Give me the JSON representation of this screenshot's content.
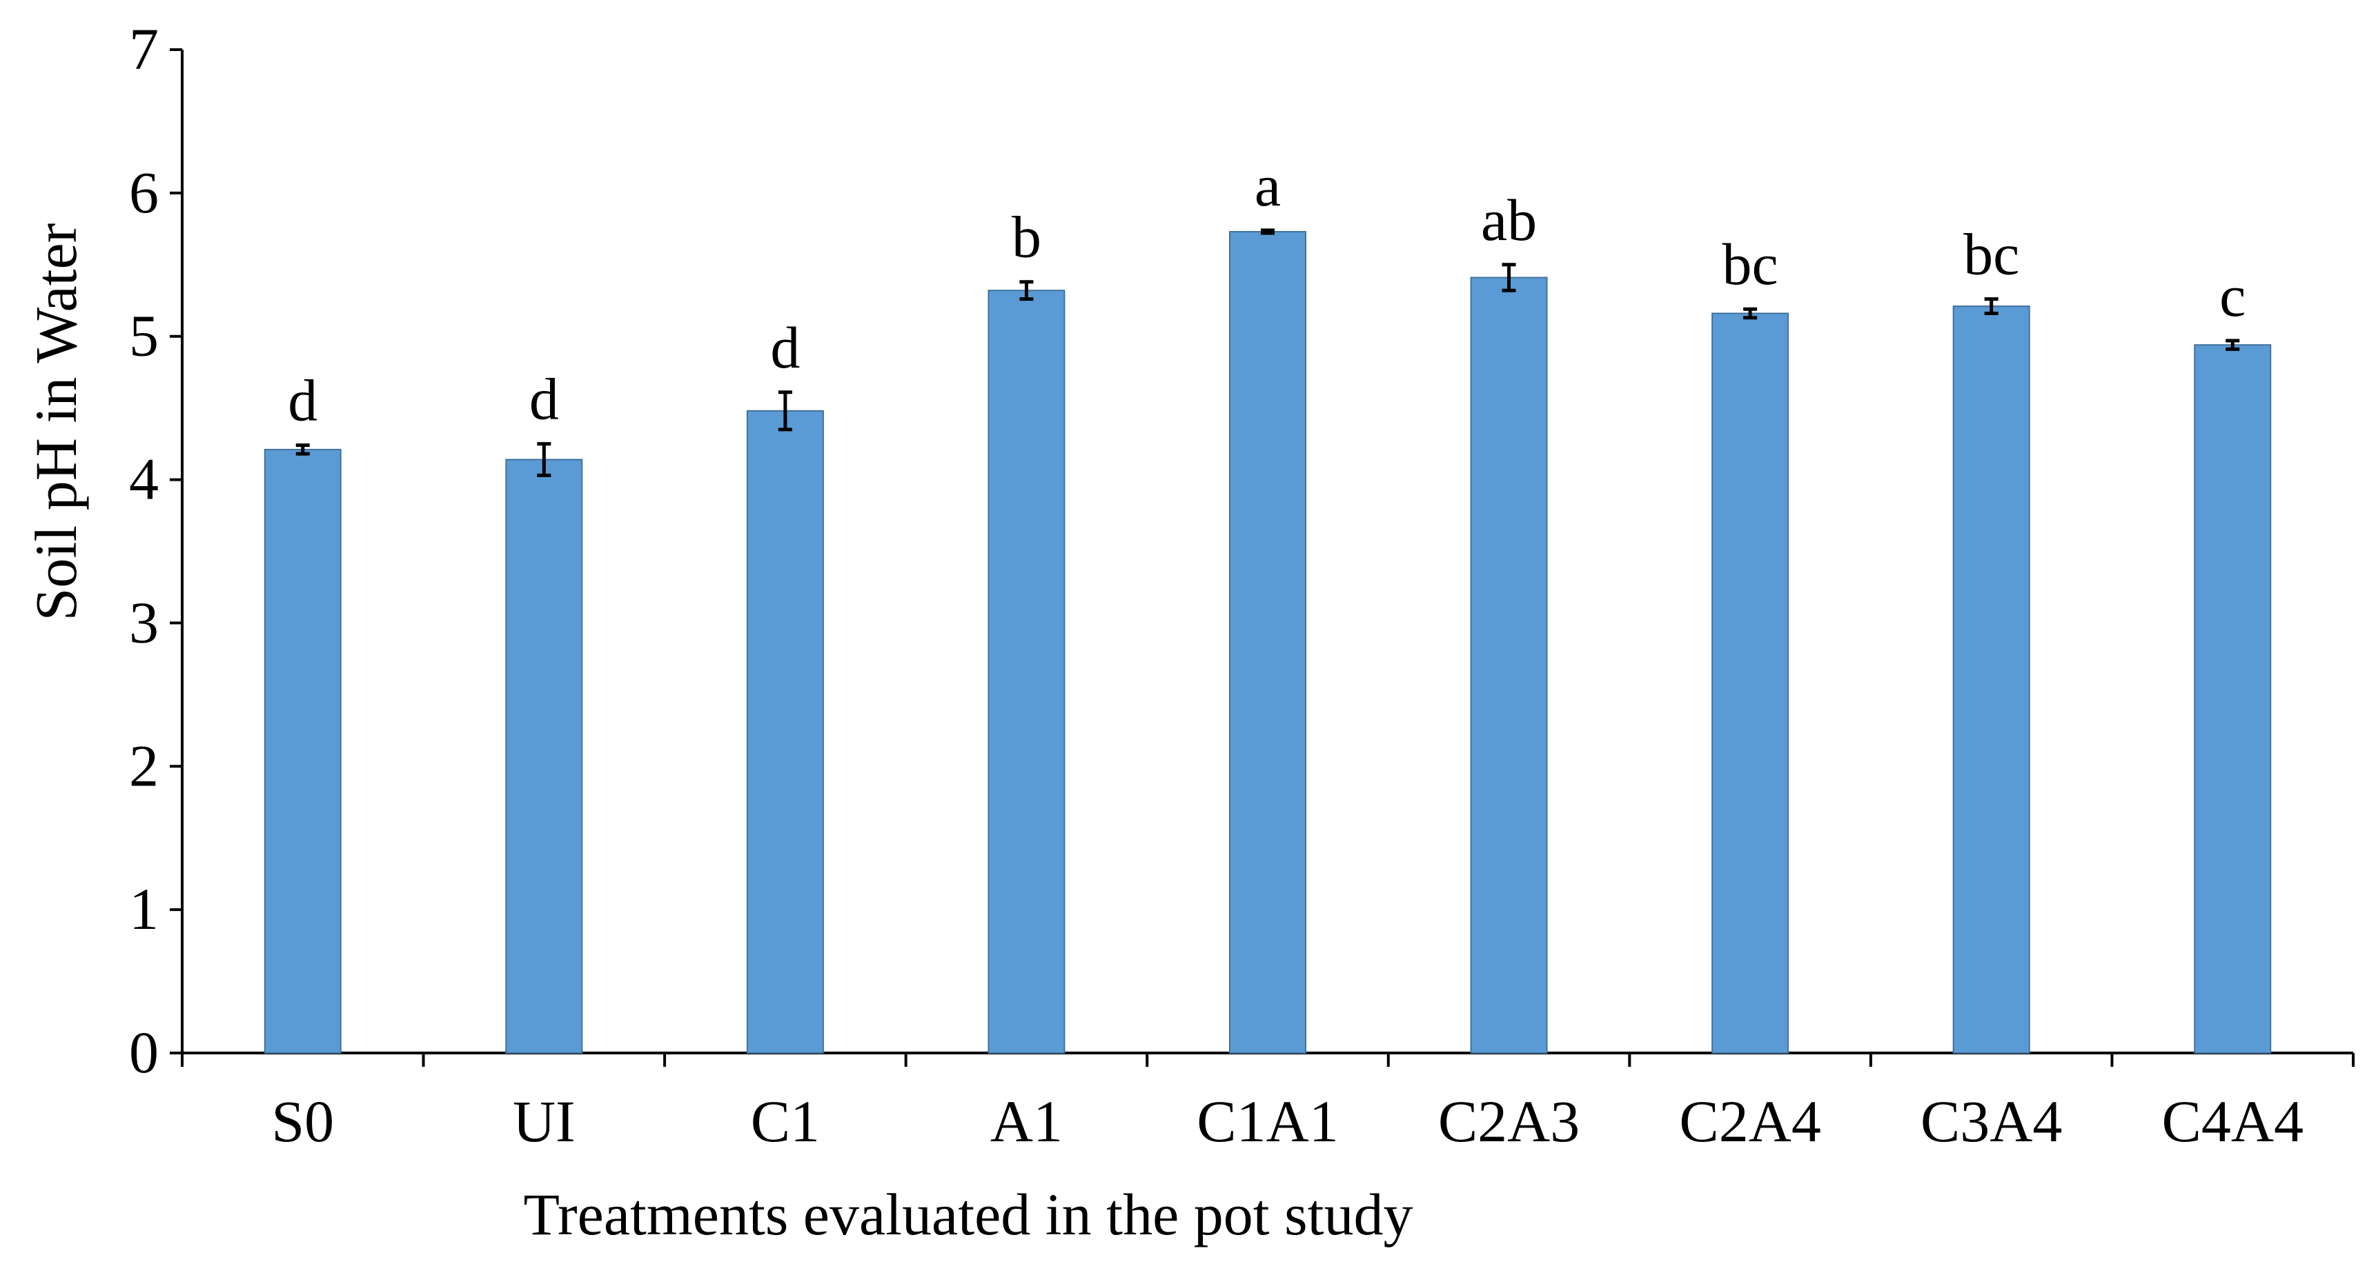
{
  "chart_data": {
    "type": "bar",
    "title": "",
    "xlabel": "Treatments evaluated in the pot study",
    "ylabel": "Soil pH in Water",
    "ylim": [
      0,
      7
    ],
    "yticks": [
      "0",
      "1",
      "2",
      "3",
      "4",
      "5",
      "6",
      "7"
    ],
    "grid": false,
    "categories": [
      "S0",
      "UI",
      "C1",
      "A1",
      "C1A1",
      "C2A3",
      "C2A4",
      "C3A4",
      "C4A4"
    ],
    "values": [
      4.21,
      4.14,
      4.48,
      5.32,
      5.73,
      5.41,
      5.16,
      5.21,
      4.94
    ],
    "errors": [
      0.03,
      0.11,
      0.13,
      0.06,
      0.01,
      0.09,
      0.03,
      0.05,
      0.03
    ],
    "significance": [
      "d",
      "d",
      "d",
      "b",
      "a",
      "ab",
      "bc",
      "bc",
      "c"
    ],
    "colors": {
      "bar_fill": "#5B9BD5",
      "bar_stroke": "#41719C",
      "axis": "#000000",
      "error_bar": "#000000"
    }
  }
}
